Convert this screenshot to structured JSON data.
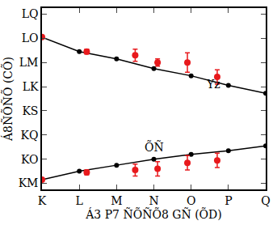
{
  "chart_data": {
    "type": "scatter",
    "x_label": "Á3 P7 ÑÕÑÕ8 GÑ (ÕD)",
    "y_label": "Á8ÑÕÑÕ (CÕ)",
    "xlim": [
      0,
      6
    ],
    "xticks": [
      {
        "value": 0,
        "label": "K"
      },
      {
        "value": 1,
        "label": "L"
      },
      {
        "value": 2,
        "label": "M"
      },
      {
        "value": 3,
        "label": "N"
      },
      {
        "value": 4,
        "label": "O"
      },
      {
        "value": 5,
        "label": "P"
      },
      {
        "value": 6,
        "label": "Q"
      }
    ],
    "ylim": [
      0.15,
      1.65
    ],
    "yticks": [
      {
        "value": 0.2,
        "label": "KM"
      },
      {
        "value": 0.4,
        "label": "KO"
      },
      {
        "value": 0.6,
        "label": "KQ"
      },
      {
        "value": 0.8,
        "label": "KS"
      },
      {
        "value": 1.0,
        "label": "LK"
      },
      {
        "value": 1.2,
        "label": "LM"
      },
      {
        "value": 1.4,
        "label": "LO"
      },
      {
        "value": 1.6,
        "label": "LQ"
      }
    ],
    "grid": false,
    "legend": false,
    "series": [
      {
        "type": "line",
        "color": "#000000",
        "marker": "circle",
        "line_style": "solid",
        "x": [
          0,
          1,
          2,
          3,
          4,
          5,
          6
        ],
        "values": [
          1.41,
          1.29,
          1.23,
          1.15,
          1.09,
          1.01,
          0.945
        ]
      },
      {
        "type": "line",
        "color": "#000000",
        "marker": "circle",
        "line_style": "solid",
        "x": [
          0,
          1,
          2,
          3,
          4,
          5,
          6
        ],
        "values": [
          0.23,
          0.3,
          0.35,
          0.4,
          0.44,
          0.47,
          0.51
        ]
      },
      {
        "type": "scatter",
        "color": "#e8191c",
        "marker": "circle",
        "x": [
          0,
          1.2,
          2.5,
          3.1,
          3.9,
          4.7
        ],
        "values": [
          1.41,
          1.29,
          1.26,
          1.2,
          1.2,
          1.08
        ],
        "error": [
          0,
          0.02,
          0.05,
          0.03,
          0.08,
          0.06
        ]
      },
      {
        "type": "scatter",
        "color": "#e8191c",
        "marker": "circle",
        "x": [
          0,
          1.2,
          2.5,
          3.1,
          3.9,
          4.7
        ],
        "values": [
          0.23,
          0.29,
          0.31,
          0.32,
          0.37,
          0.39
        ],
        "error": [
          0,
          0.02,
          0.05,
          0.06,
          0.06,
          0.06
        ]
      }
    ],
    "annotations": [
      {
        "text": "Yz",
        "x": 4.6,
        "y": 1.02
      },
      {
        "text": "ÕÑ",
        "x": 3.0,
        "y": 0.5
      }
    ]
  }
}
